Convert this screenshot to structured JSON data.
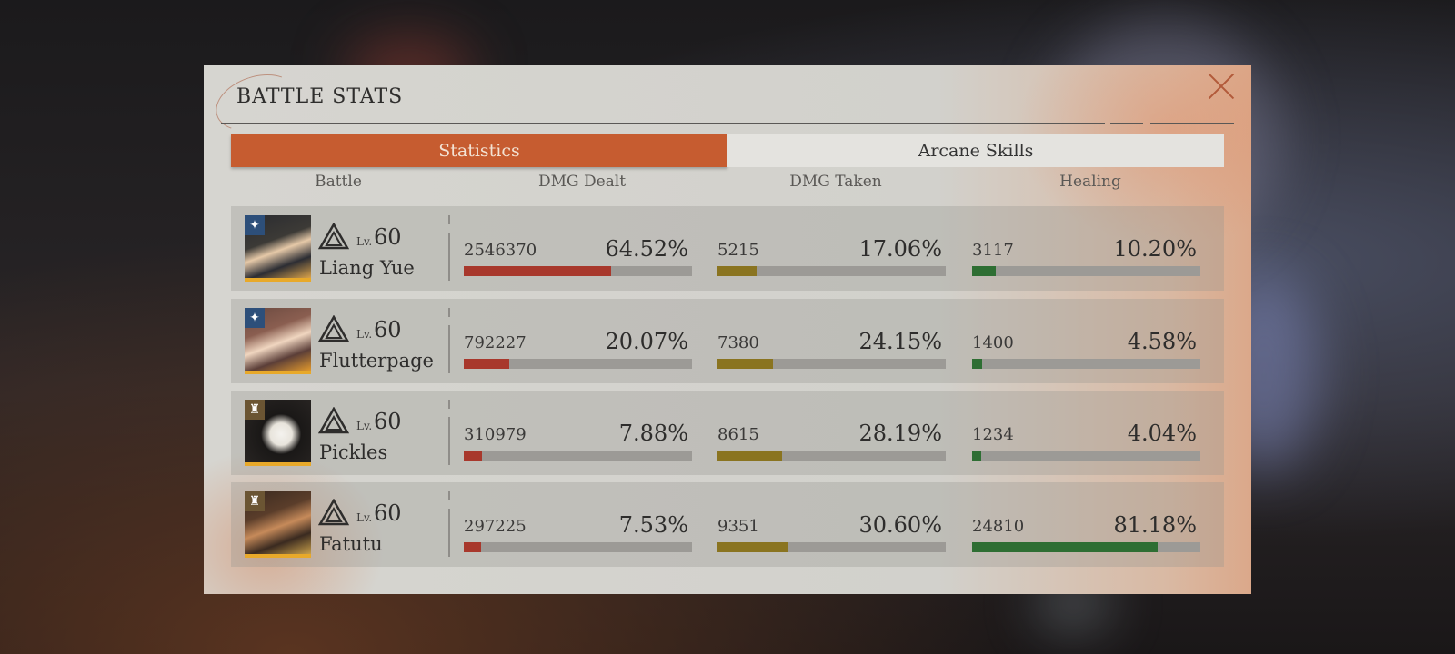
{
  "title": "BATTLE STATS",
  "tabs": [
    {
      "label": "Statistics",
      "active": true
    },
    {
      "label": "Arcane Skills",
      "active": false
    }
  ],
  "columns": [
    "Battle",
    "DMG Dealt",
    "DMG Taken",
    "Healing"
  ],
  "level_prefix": "Lv.",
  "colors": {
    "accent": "#c65c30",
    "dmg_dealt": "#a8382c",
    "dmg_taken": "#8a7420",
    "healing": "#2e6e33",
    "avatar_border": "#e8a92a"
  },
  "characters": [
    {
      "name": "Liang Yue",
      "level": "60",
      "class_icon": "triangle-class-icon",
      "badge": "star-badge-icon",
      "dmg_dealt": {
        "value": "2546370",
        "pct": "64.52%",
        "fraction": 0.6452
      },
      "dmg_taken": {
        "value": "5215",
        "pct": "17.06%",
        "fraction": 0.1706
      },
      "healing": {
        "value": "3117",
        "pct": "10.20%",
        "fraction": 0.102
      }
    },
    {
      "name": "Flutterpage",
      "level": "60",
      "class_icon": "triangle-class-icon",
      "badge": "star-badge-icon",
      "dmg_dealt": {
        "value": "792227",
        "pct": "20.07%",
        "fraction": 0.2007
      },
      "dmg_taken": {
        "value": "7380",
        "pct": "24.15%",
        "fraction": 0.2415
      },
      "healing": {
        "value": "1400",
        "pct": "4.58%",
        "fraction": 0.0458
      }
    },
    {
      "name": "Pickles",
      "level": "60",
      "class_icon": "triangle-class-icon",
      "badge": "beast-badge-icon",
      "dmg_dealt": {
        "value": "310979",
        "pct": "7.88%",
        "fraction": 0.0788
      },
      "dmg_taken": {
        "value": "8615",
        "pct": "28.19%",
        "fraction": 0.2819
      },
      "healing": {
        "value": "1234",
        "pct": "4.04%",
        "fraction": 0.0404
      }
    },
    {
      "name": "Fatutu",
      "level": "60",
      "class_icon": "triangle-class-icon",
      "badge": "beast-badge-icon",
      "dmg_dealt": {
        "value": "297225",
        "pct": "7.53%",
        "fraction": 0.0753
      },
      "dmg_taken": {
        "value": "9351",
        "pct": "30.60%",
        "fraction": 0.306
      },
      "healing": {
        "value": "24810",
        "pct": "81.18%",
        "fraction": 0.8118
      }
    }
  ]
}
